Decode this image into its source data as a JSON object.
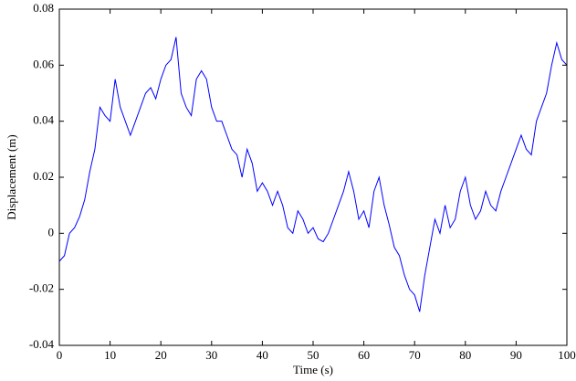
{
  "chart_data": {
    "type": "line",
    "x_label": "Time (s)",
    "y_label": "Displacement (m)",
    "x": [
      0,
      1,
      2,
      3,
      4,
      5,
      6,
      7,
      8,
      9,
      10,
      11,
      12,
      13,
      14,
      15,
      16,
      17,
      18,
      19,
      20,
      21,
      22,
      23,
      24,
      25,
      26,
      27,
      28,
      29,
      30,
      31,
      32,
      33,
      34,
      35,
      36,
      37,
      38,
      39,
      40,
      41,
      42,
      43,
      44,
      45,
      46,
      47,
      48,
      49,
      50,
      51,
      52,
      53,
      54,
      55,
      56,
      57,
      58,
      59,
      60,
      61,
      62,
      63,
      64,
      65,
      66,
      67,
      68,
      69,
      70,
      71,
      72,
      73,
      74,
      75,
      76,
      77,
      78,
      79,
      80,
      81,
      82,
      83,
      84,
      85,
      86,
      87,
      88,
      89,
      90,
      91,
      92,
      93,
      94,
      95,
      96,
      97,
      98,
      99,
      100
    ],
    "series": [
      {
        "color": "#0000ff",
        "values": [
          -0.01,
          -0.008,
          0.0,
          0.002,
          0.006,
          0.012,
          0.022,
          0.03,
          0.045,
          0.042,
          0.04,
          0.055,
          0.045,
          0.04,
          0.035,
          0.04,
          0.045,
          0.05,
          0.052,
          0.048,
          0.055,
          0.06,
          0.062,
          0.07,
          0.05,
          0.045,
          0.042,
          0.055,
          0.058,
          0.055,
          0.045,
          0.04,
          0.04,
          0.035,
          0.03,
          0.028,
          0.02,
          0.03,
          0.025,
          0.015,
          0.018,
          0.015,
          0.01,
          0.015,
          0.01,
          0.002,
          0.0,
          0.008,
          0.005,
          0.0,
          0.002,
          -0.002,
          -0.003,
          0.0,
          0.005,
          0.01,
          0.015,
          0.022,
          0.015,
          0.005,
          0.008,
          0.002,
          0.015,
          0.02,
          0.01,
          0.003,
          -0.005,
          -0.008,
          -0.015,
          -0.02,
          -0.022,
          -0.028,
          -0.015,
          -0.005,
          0.005,
          0.0,
          0.01,
          0.002,
          0.005,
          0.015,
          0.02,
          0.01,
          0.005,
          0.008,
          0.015,
          0.01,
          0.008,
          0.015,
          0.02,
          0.025,
          0.03,
          0.035,
          0.03,
          0.028,
          0.04,
          0.045,
          0.05,
          0.06,
          0.068,
          0.062,
          0.06
        ]
      }
    ],
    "xlim": [
      0,
      100
    ],
    "xticks": [
      0,
      10,
      20,
      30,
      40,
      50,
      60,
      70,
      80,
      90,
      100
    ],
    "ylim": [
      -0.04,
      0.08
    ],
    "yticks": [
      -0.04,
      -0.02,
      0,
      0.02,
      0.04,
      0.06,
      0.08
    ]
  }
}
